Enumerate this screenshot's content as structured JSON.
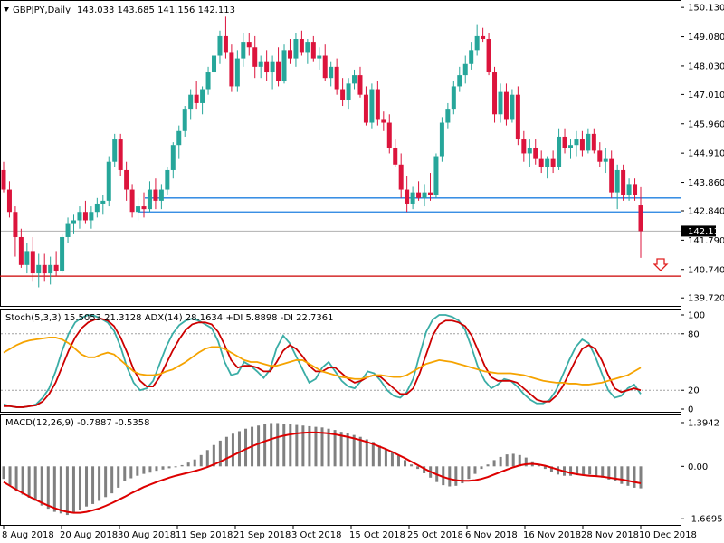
{
  "chart_data": [
    {
      "type": "candlestick",
      "pane": "price",
      "symbol_label": "GBPJPY,Daily",
      "ohlc_label": "143.033 143.685 141.156 142.113",
      "ylim": [
        139.5,
        150.2
      ],
      "y_ticks": [
        "150.130",
        "149.080",
        "148.030",
        "147.010",
        "145.960",
        "144.910",
        "143.860",
        "142.840",
        "141.790",
        "140.740",
        "139.720"
      ],
      "current_price_label": "142.113",
      "current_price": 142.113,
      "x_ticks": [
        "8 Aug 2018",
        "20 Aug 2018",
        "30 Aug 2018",
        "11 Sep 2018",
        "21 Sep 2018",
        "3 Oct 2018",
        "15 Oct 2018",
        "25 Oct 2018",
        "6 Nov 2018",
        "16 Nov 2018",
        "28 Nov 2018",
        "10 Dec 2018"
      ],
      "horizontal_lines": [
        {
          "value": 143.3,
          "color": "#1e7fe0"
        },
        {
          "value": 142.8,
          "color": "#1e7fe0"
        },
        {
          "value": 140.5,
          "color": "#cc0000"
        }
      ],
      "arrow": "down",
      "colors": {
        "bull": "#26a69a",
        "bear": "#dc143c"
      },
      "candles": [
        [
          144.3,
          144.6,
          143.5,
          143.6
        ],
        [
          143.6,
          143.9,
          142.6,
          142.8
        ],
        [
          142.8,
          143.0,
          141.2,
          141.9
        ],
        [
          141.9,
          142.2,
          140.8,
          140.9
        ],
        [
          140.9,
          141.7,
          140.6,
          141.4
        ],
        [
          141.4,
          141.9,
          140.3,
          140.6
        ],
        [
          140.6,
          141.3,
          140.1,
          140.9
        ],
        [
          140.9,
          141.3,
          140.3,
          140.6
        ],
        [
          140.6,
          141.2,
          140.2,
          140.9
        ],
        [
          140.9,
          141.4,
          140.5,
          140.7
        ],
        [
          140.7,
          142.0,
          140.6,
          141.9
        ],
        [
          141.9,
          142.6,
          141.7,
          142.4
        ],
        [
          142.4,
          142.7,
          142.0,
          142.5
        ],
        [
          142.5,
          143.0,
          142.2,
          142.8
        ],
        [
          142.8,
          143.2,
          142.4,
          142.5
        ],
        [
          142.5,
          143.0,
          142.2,
          142.8
        ],
        [
          142.8,
          143.3,
          142.6,
          143.1
        ],
        [
          143.1,
          143.4,
          142.7,
          143.2
        ],
        [
          143.2,
          144.8,
          143.0,
          144.6
        ],
        [
          144.6,
          145.6,
          144.4,
          145.4
        ],
        [
          145.4,
          145.6,
          144.1,
          144.3
        ],
        [
          144.3,
          144.6,
          143.2,
          143.6
        ],
        [
          143.6,
          143.8,
          142.6,
          142.8
        ],
        [
          142.8,
          143.3,
          142.5,
          143.0
        ],
        [
          143.0,
          143.5,
          142.6,
          142.9
        ],
        [
          142.9,
          143.9,
          142.8,
          143.6
        ],
        [
          143.6,
          144.0,
          142.9,
          143.2
        ],
        [
          143.2,
          143.8,
          142.9,
          143.6
        ],
        [
          143.6,
          144.4,
          143.4,
          144.3
        ],
        [
          144.3,
          145.3,
          144.0,
          145.2
        ],
        [
          145.2,
          145.9,
          144.7,
          145.7
        ],
        [
          145.7,
          146.6,
          145.5,
          146.5
        ],
        [
          146.5,
          147.2,
          146.1,
          147.0
        ],
        [
          147.0,
          147.5,
          146.5,
          146.7
        ],
        [
          146.7,
          147.3,
          146.3,
          147.2
        ],
        [
          147.2,
          148.0,
          147.0,
          147.8
        ],
        [
          147.8,
          148.6,
          147.6,
          148.4
        ],
        [
          148.4,
          149.3,
          148.1,
          149.1
        ],
        [
          149.1,
          149.8,
          148.3,
          148.5
        ],
        [
          148.5,
          148.8,
          147.1,
          147.3
        ],
        [
          147.3,
          148.6,
          147.1,
          148.3
        ],
        [
          148.3,
          149.2,
          148.0,
          148.9
        ],
        [
          148.9,
          149.2,
          148.4,
          148.7
        ],
        [
          148.7,
          149.1,
          147.6,
          148.0
        ],
        [
          148.0,
          148.4,
          147.6,
          148.2
        ],
        [
          148.2,
          148.6,
          147.5,
          147.8
        ],
        [
          147.8,
          148.4,
          147.2,
          148.2
        ],
        [
          148.2,
          148.7,
          147.3,
          147.5
        ],
        [
          147.5,
          148.8,
          147.4,
          148.6
        ],
        [
          148.6,
          149.0,
          148.1,
          148.3
        ],
        [
          148.3,
          149.2,
          148.0,
          149.0
        ],
        [
          149.0,
          149.3,
          148.4,
          148.5
        ],
        [
          148.5,
          149.0,
          148.1,
          148.9
        ],
        [
          148.9,
          149.1,
          148.2,
          148.3
        ],
        [
          148.3,
          148.7,
          147.9,
          148.4
        ],
        [
          148.4,
          148.8,
          147.5,
          147.6
        ],
        [
          147.6,
          148.2,
          147.3,
          148.0
        ],
        [
          148.0,
          148.3,
          147.0,
          147.2
        ],
        [
          147.2,
          147.6,
          146.6,
          146.8
        ],
        [
          146.8,
          147.6,
          146.5,
          147.4
        ],
        [
          147.4,
          147.9,
          147.2,
          147.7
        ],
        [
          147.7,
          148.0,
          146.9,
          147.0
        ],
        [
          147.0,
          147.3,
          145.9,
          146.0
        ],
        [
          146.0,
          147.4,
          145.8,
          147.2
        ],
        [
          147.2,
          147.5,
          145.9,
          146.1
        ],
        [
          146.1,
          146.4,
          145.7,
          146.0
        ],
        [
          146.0,
          146.3,
          144.9,
          145.1
        ],
        [
          145.1,
          145.4,
          144.4,
          144.5
        ],
        [
          144.5,
          144.9,
          143.3,
          143.6
        ],
        [
          143.6,
          144.1,
          142.8,
          143.1
        ],
        [
          143.1,
          143.7,
          142.9,
          143.5
        ],
        [
          143.5,
          143.9,
          143.2,
          143.3
        ],
        [
          143.3,
          143.8,
          143.0,
          143.5
        ],
        [
          143.5,
          144.2,
          143.2,
          143.4
        ],
        [
          143.4,
          144.9,
          143.3,
          144.8
        ],
        [
          144.8,
          146.2,
          144.6,
          146.0
        ],
        [
          146.0,
          146.7,
          145.8,
          146.5
        ],
        [
          146.5,
          147.5,
          146.3,
          147.3
        ],
        [
          147.3,
          148.0,
          147.1,
          147.7
        ],
        [
          147.7,
          148.4,
          147.4,
          148.1
        ],
        [
          148.1,
          148.9,
          147.9,
          148.6
        ],
        [
          148.6,
          149.5,
          148.4,
          149.1
        ],
        [
          149.1,
          149.4,
          148.9,
          149.0
        ],
        [
          149.0,
          149.2,
          147.7,
          147.8
        ],
        [
          147.8,
          148.0,
          146.0,
          146.3
        ],
        [
          146.3,
          147.4,
          146.0,
          147.1
        ],
        [
          147.1,
          147.4,
          145.9,
          146.1
        ],
        [
          146.1,
          147.2,
          146.0,
          147.0
        ],
        [
          147.0,
          147.3,
          145.2,
          145.4
        ],
        [
          145.4,
          145.7,
          144.6,
          144.9
        ],
        [
          144.9,
          145.4,
          144.4,
          145.1
        ],
        [
          145.1,
          145.4,
          144.5,
          144.7
        ],
        [
          144.7,
          145.0,
          144.2,
          144.4
        ],
        [
          144.4,
          144.8,
          144.0,
          144.7
        ],
        [
          144.7,
          145.0,
          144.2,
          144.4
        ],
        [
          144.4,
          145.8,
          144.3,
          145.5
        ],
        [
          145.5,
          145.8,
          144.9,
          145.1
        ],
        [
          145.1,
          145.4,
          144.7,
          145.2
        ],
        [
          145.2,
          145.7,
          144.8,
          145.4
        ],
        [
          145.4,
          145.7,
          144.8,
          145.0
        ],
        [
          145.0,
          145.8,
          144.9,
          145.6
        ],
        [
          145.6,
          145.8,
          144.9,
          145.0
        ],
        [
          145.0,
          145.3,
          144.4,
          144.6
        ],
        [
          144.6,
          145.1,
          144.2,
          144.7
        ],
        [
          144.7,
          145.0,
          143.3,
          143.5
        ],
        [
          143.5,
          144.5,
          142.9,
          144.3
        ],
        [
          144.3,
          144.5,
          143.2,
          143.4
        ],
        [
          143.4,
          144.0,
          143.2,
          143.8
        ],
        [
          143.8,
          144.0,
          143.2,
          143.4
        ],
        [
          143.033,
          143.685,
          141.156,
          142.113
        ]
      ]
    },
    {
      "type": "line",
      "pane": "stochastic",
      "label": "Stoch(5,3,3) 15.5053 21.3128  ADX(14) 28.1634 +DI 5.8898 -DI 22.7361",
      "ylim": [
        0,
        100
      ],
      "y_ticks": [
        "100",
        "80",
        "20",
        "0"
      ],
      "levels": [
        80,
        20
      ],
      "series": [
        {
          "color": "#3aada6",
          "values": [
            5,
            3,
            2,
            2,
            3,
            5,
            12,
            22,
            40,
            62,
            80,
            92,
            97,
            100,
            99,
            96,
            92,
            83,
            66,
            44,
            28,
            20,
            22,
            30,
            48,
            66,
            80,
            89,
            94,
            96,
            94,
            90,
            86,
            72,
            50,
            36,
            38,
            50,
            46,
            40,
            33,
            42,
            65,
            78,
            70,
            56,
            42,
            28,
            32,
            44,
            50,
            40,
            30,
            24,
            22,
            30,
            40,
            38,
            30,
            20,
            14,
            12,
            18,
            32,
            58,
            82,
            95,
            100,
            100,
            98,
            94,
            84,
            65,
            44,
            30,
            22,
            26,
            32,
            30,
            24,
            16,
            10,
            6,
            6,
            10,
            20,
            36,
            52,
            66,
            74,
            70,
            56,
            38,
            20,
            12,
            14,
            22,
            26,
            16
          ]
        },
        {
          "color": "#cc0000",
          "values": [
            3,
            3,
            2,
            2,
            3,
            4,
            8,
            16,
            28,
            45,
            62,
            76,
            86,
            92,
            95,
            96,
            94,
            88,
            76,
            60,
            42,
            30,
            24,
            24,
            34,
            48,
            62,
            74,
            84,
            90,
            92,
            92,
            90,
            82,
            68,
            52,
            44,
            46,
            46,
            44,
            40,
            40,
            50,
            62,
            68,
            64,
            56,
            46,
            40,
            40,
            44,
            44,
            38,
            32,
            28,
            30,
            34,
            36,
            34,
            28,
            22,
            16,
            16,
            22,
            38,
            58,
            78,
            90,
            94,
            94,
            92,
            88,
            78,
            62,
            46,
            34,
            30,
            30,
            30,
            28,
            22,
            16,
            10,
            8,
            8,
            14,
            24,
            38,
            52,
            64,
            68,
            64,
            52,
            36,
            22,
            18,
            20,
            22,
            20
          ]
        },
        {
          "color": "#f5a300",
          "values": [
            60,
            64,
            68,
            71,
            73,
            74,
            75,
            76,
            76,
            74,
            70,
            64,
            58,
            55,
            55,
            58,
            60,
            58,
            52,
            46,
            40,
            37,
            36,
            36,
            37,
            40,
            42,
            46,
            50,
            55,
            60,
            64,
            66,
            66,
            64,
            60,
            56,
            52,
            50,
            50,
            48,
            46,
            46,
            48,
            50,
            52,
            52,
            48,
            44,
            40,
            38,
            36,
            34,
            33,
            32,
            32,
            34,
            36,
            36,
            35,
            34,
            34,
            36,
            40,
            44,
            48,
            50,
            52,
            51,
            50,
            48,
            46,
            44,
            42,
            40,
            39,
            38,
            38,
            38,
            37,
            36,
            34,
            32,
            30,
            29,
            28,
            28,
            27,
            27,
            26,
            26,
            27,
            28,
            30,
            32,
            34,
            36,
            40,
            44
          ]
        }
      ]
    },
    {
      "type": "bar+line",
      "pane": "macd",
      "label": "MACD(12,26,9) -0.7887 -0.5358",
      "ylim": [
        -1.75,
        1.48
      ],
      "y_ticks": [
        "1.3942",
        "0.00",
        "-1.6695"
      ],
      "histogram_color": "#808080",
      "signal_color": "#dd0000",
      "histogram": [
        -0.4,
        -0.6,
        -0.8,
        -0.9,
        -1.0,
        -1.1,
        -1.25,
        -1.35,
        -1.45,
        -1.5,
        -1.55,
        -1.5,
        -1.38,
        -1.28,
        -1.2,
        -1.1,
        -0.98,
        -0.86,
        -0.68,
        -0.48,
        -0.38,
        -0.3,
        -0.24,
        -0.2,
        -0.14,
        -0.1,
        -0.06,
        -0.02,
        0.04,
        0.12,
        0.22,
        0.36,
        0.52,
        0.68,
        0.82,
        0.94,
        1.04,
        1.12,
        1.2,
        1.26,
        1.3,
        1.34,
        1.38,
        1.38,
        1.36,
        1.34,
        1.32,
        1.3,
        1.28,
        1.26,
        1.24,
        1.2,
        1.16,
        1.1,
        1.06,
        1.0,
        0.94,
        0.86,
        0.78,
        0.66,
        0.56,
        0.46,
        0.34,
        0.2,
        0.06,
        -0.08,
        -0.22,
        -0.36,
        -0.5,
        -0.6,
        -0.64,
        -0.62,
        -0.54,
        -0.4,
        -0.24,
        -0.08,
        0.06,
        0.2,
        0.3,
        0.38,
        0.4,
        0.36,
        0.28,
        0.16,
        0.04,
        -0.08,
        -0.18,
        -0.26,
        -0.3,
        -0.3,
        -0.28,
        -0.26,
        -0.26,
        -0.3,
        -0.36,
        -0.42,
        -0.48,
        -0.56,
        -0.62,
        -0.68,
        -0.7
      ],
      "signal": [
        -0.5,
        -0.62,
        -0.74,
        -0.85,
        -0.96,
        -1.06,
        -1.16,
        -1.25,
        -1.33,
        -1.4,
        -1.45,
        -1.48,
        -1.48,
        -1.45,
        -1.4,
        -1.34,
        -1.26,
        -1.17,
        -1.07,
        -0.97,
        -0.86,
        -0.76,
        -0.66,
        -0.58,
        -0.5,
        -0.43,
        -0.36,
        -0.3,
        -0.25,
        -0.2,
        -0.15,
        -0.09,
        -0.02,
        0.06,
        0.15,
        0.25,
        0.35,
        0.45,
        0.55,
        0.64,
        0.72,
        0.8,
        0.87,
        0.93,
        0.98,
        1.02,
        1.05,
        1.07,
        1.08,
        1.08,
        1.07,
        1.05,
        1.02,
        0.98,
        0.94,
        0.89,
        0.84,
        0.78,
        0.71,
        0.63,
        0.55,
        0.46,
        0.36,
        0.26,
        0.15,
        0.04,
        -0.07,
        -0.17,
        -0.26,
        -0.34,
        -0.4,
        -0.44,
        -0.46,
        -0.46,
        -0.44,
        -0.4,
        -0.34,
        -0.26,
        -0.18,
        -0.1,
        -0.03,
        0.03,
        0.07,
        0.08,
        0.06,
        0.02,
        -0.04,
        -0.1,
        -0.16,
        -0.21,
        -0.25,
        -0.28,
        -0.3,
        -0.31,
        -0.33,
        -0.36,
        -0.39,
        -0.42,
        -0.46,
        -0.5,
        -0.54
      ]
    }
  ]
}
